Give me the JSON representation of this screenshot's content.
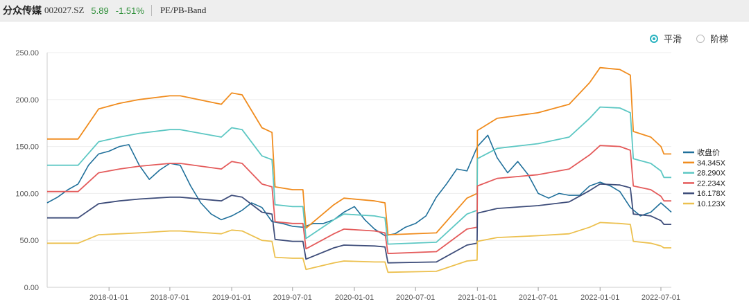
{
  "header": {
    "stock_name": "分众传媒",
    "stock_code": "002027.SZ",
    "price": "5.89",
    "change": "-1.51%",
    "mode": "PE/PB-Band"
  },
  "toggle": {
    "smooth_label": "平滑",
    "step_label": "阶梯",
    "selected": "smooth"
  },
  "chart_data": {
    "type": "line",
    "title": "",
    "xlabel": "",
    "ylabel": "",
    "ylim": [
      0,
      250
    ],
    "yticks": [
      "0.00",
      "50.00",
      "100.00",
      "150.00",
      "200.00",
      "250.00"
    ],
    "xticks": [
      "2018-01-01",
      "2018-07-01",
      "2019-01-01",
      "2019-07-01",
      "2020-01-01",
      "2020-07-01",
      "2021-01-01",
      "2021-07-01",
      "2022-01-01",
      "2022-07-01"
    ],
    "xlim": [
      "2017-07-01",
      "2022-08-01"
    ],
    "grid": "horizontal",
    "legend_position": "right",
    "series": [
      {
        "name": "收盘价",
        "color": "#1f6f9a",
        "points": [
          [
            "2017-07-01",
            90
          ],
          [
            "2017-08-01",
            96
          ],
          [
            "2017-09-01",
            104
          ],
          [
            "2017-10-01",
            110
          ],
          [
            "2017-11-01",
            130
          ],
          [
            "2017-12-01",
            142
          ],
          [
            "2018-01-01",
            145
          ],
          [
            "2018-02-01",
            150
          ],
          [
            "2018-03-01",
            152
          ],
          [
            "2018-04-01",
            130
          ],
          [
            "2018-05-01",
            115
          ],
          [
            "2018-06-01",
            125
          ],
          [
            "2018-07-01",
            132
          ],
          [
            "2018-08-01",
            130
          ],
          [
            "2018-09-01",
            108
          ],
          [
            "2018-10-01",
            90
          ],
          [
            "2018-11-01",
            78
          ],
          [
            "2018-12-01",
            72
          ],
          [
            "2019-01-01",
            76
          ],
          [
            "2019-02-01",
            82
          ],
          [
            "2019-03-01",
            90
          ],
          [
            "2019-04-01",
            85
          ],
          [
            "2019-05-01",
            70
          ],
          [
            "2019-06-01",
            68
          ],
          [
            "2019-07-01",
            65
          ],
          [
            "2019-08-01",
            64
          ],
          [
            "2019-09-01",
            68
          ],
          [
            "2019-10-01",
            68
          ],
          [
            "2019-11-01",
            72
          ],
          [
            "2019-12-01",
            80
          ],
          [
            "2020-01-01",
            86
          ],
          [
            "2020-02-01",
            72
          ],
          [
            "2020-03-01",
            62
          ],
          [
            "2020-04-01",
            55
          ],
          [
            "2020-05-01",
            57
          ],
          [
            "2020-06-01",
            64
          ],
          [
            "2020-07-01",
            68
          ],
          [
            "2020-08-01",
            76
          ],
          [
            "2020-09-01",
            96
          ],
          [
            "2020-10-01",
            110
          ],
          [
            "2020-11-01",
            126
          ],
          [
            "2020-12-01",
            124
          ],
          [
            "2021-01-01",
            150
          ],
          [
            "2021-02-01",
            162
          ],
          [
            "2021-03-01",
            138
          ],
          [
            "2021-04-01",
            122
          ],
          [
            "2021-05-01",
            134
          ],
          [
            "2021-06-01",
            120
          ],
          [
            "2021-07-01",
            100
          ],
          [
            "2021-08-01",
            95
          ],
          [
            "2021-09-01",
            100
          ],
          [
            "2021-10-01",
            98
          ],
          [
            "2021-11-01",
            98
          ],
          [
            "2021-12-01",
            108
          ],
          [
            "2022-01-01",
            112
          ],
          [
            "2022-02-01",
            108
          ],
          [
            "2022-03-01",
            102
          ],
          [
            "2022-04-01",
            85
          ],
          [
            "2022-05-01",
            76
          ],
          [
            "2022-06-01",
            80
          ],
          [
            "2022-07-01",
            90
          ],
          [
            "2022-07-20",
            84
          ],
          [
            "2022-08-01",
            80
          ]
        ]
      },
      {
        "name": "34.345X",
        "color": "#f08c1e",
        "points": [
          [
            "2017-07-01",
            158
          ],
          [
            "2017-10-01",
            158
          ],
          [
            "2017-12-01",
            190
          ],
          [
            "2018-02-01",
            196
          ],
          [
            "2018-04-01",
            200
          ],
          [
            "2018-07-01",
            204
          ],
          [
            "2018-08-01",
            204
          ],
          [
            "2018-12-01",
            195
          ],
          [
            "2019-01-01",
            207
          ],
          [
            "2019-02-01",
            205
          ],
          [
            "2019-04-01",
            170
          ],
          [
            "2019-05-01",
            165
          ],
          [
            "2019-05-10",
            107
          ],
          [
            "2019-07-01",
            104
          ],
          [
            "2019-08-01",
            104
          ],
          [
            "2019-08-10",
            63
          ],
          [
            "2019-11-01",
            88
          ],
          [
            "2019-12-01",
            95
          ],
          [
            "2020-03-01",
            92
          ],
          [
            "2020-04-01",
            90
          ],
          [
            "2020-04-10",
            56
          ],
          [
            "2020-09-01",
            58
          ],
          [
            "2020-12-01",
            95
          ],
          [
            "2020-12-31",
            100
          ],
          [
            "2021-01-01",
            167
          ],
          [
            "2021-03-01",
            180
          ],
          [
            "2021-07-01",
            186
          ],
          [
            "2021-10-01",
            195
          ],
          [
            "2021-12-01",
            218
          ],
          [
            "2022-01-01",
            234
          ],
          [
            "2022-03-01",
            232
          ],
          [
            "2022-04-01",
            226
          ],
          [
            "2022-04-10",
            166
          ],
          [
            "2022-06-01",
            160
          ],
          [
            "2022-07-01",
            150
          ],
          [
            "2022-07-10",
            142
          ],
          [
            "2022-08-01",
            142
          ]
        ]
      },
      {
        "name": "28.290X",
        "color": "#5cc7c3",
        "points": [
          [
            "2017-07-01",
            130
          ],
          [
            "2017-10-01",
            130
          ],
          [
            "2017-12-01",
            155
          ],
          [
            "2018-02-01",
            160
          ],
          [
            "2018-04-01",
            164
          ],
          [
            "2018-07-01",
            168
          ],
          [
            "2018-08-01",
            168
          ],
          [
            "2018-12-01",
            160
          ],
          [
            "2019-01-01",
            170
          ],
          [
            "2019-02-01",
            168
          ],
          [
            "2019-04-01",
            140
          ],
          [
            "2019-05-01",
            136
          ],
          [
            "2019-05-10",
            88
          ],
          [
            "2019-07-01",
            86
          ],
          [
            "2019-08-01",
            86
          ],
          [
            "2019-08-10",
            52
          ],
          [
            "2019-11-01",
            72
          ],
          [
            "2019-12-01",
            78
          ],
          [
            "2020-03-01",
            76
          ],
          [
            "2020-04-01",
            74
          ],
          [
            "2020-04-10",
            46
          ],
          [
            "2020-09-01",
            48
          ],
          [
            "2020-12-01",
            78
          ],
          [
            "2020-12-31",
            82
          ],
          [
            "2021-01-01",
            137
          ],
          [
            "2021-03-01",
            148
          ],
          [
            "2021-07-01",
            153
          ],
          [
            "2021-10-01",
            160
          ],
          [
            "2021-12-01",
            180
          ],
          [
            "2022-01-01",
            192
          ],
          [
            "2022-03-01",
            191
          ],
          [
            "2022-04-01",
            186
          ],
          [
            "2022-04-10",
            137
          ],
          [
            "2022-06-01",
            132
          ],
          [
            "2022-07-01",
            124
          ],
          [
            "2022-07-10",
            117
          ],
          [
            "2022-08-01",
            117
          ]
        ]
      },
      {
        "name": "22.234X",
        "color": "#e45b5b",
        "points": [
          [
            "2017-07-01",
            102
          ],
          [
            "2017-10-01",
            102
          ],
          [
            "2017-12-01",
            122
          ],
          [
            "2018-02-01",
            126
          ],
          [
            "2018-04-01",
            129
          ],
          [
            "2018-07-01",
            132
          ],
          [
            "2018-08-01",
            132
          ],
          [
            "2018-12-01",
            126
          ],
          [
            "2019-01-01",
            134
          ],
          [
            "2019-02-01",
            132
          ],
          [
            "2019-04-01",
            110
          ],
          [
            "2019-05-01",
            107
          ],
          [
            "2019-05-10",
            70
          ],
          [
            "2019-07-01",
            68
          ],
          [
            "2019-08-01",
            68
          ],
          [
            "2019-08-10",
            41
          ],
          [
            "2019-11-01",
            57
          ],
          [
            "2019-12-01",
            62
          ],
          [
            "2020-03-01",
            60
          ],
          [
            "2020-04-01",
            58
          ],
          [
            "2020-04-10",
            36
          ],
          [
            "2020-09-01",
            38
          ],
          [
            "2020-12-01",
            62
          ],
          [
            "2020-12-31",
            64
          ],
          [
            "2021-01-01",
            108
          ],
          [
            "2021-03-01",
            116
          ],
          [
            "2021-07-01",
            120
          ],
          [
            "2021-10-01",
            126
          ],
          [
            "2021-12-01",
            141
          ],
          [
            "2022-01-01",
            151
          ],
          [
            "2022-03-01",
            150
          ],
          [
            "2022-04-01",
            146
          ],
          [
            "2022-04-10",
            108
          ],
          [
            "2022-06-01",
            104
          ],
          [
            "2022-07-01",
            97
          ],
          [
            "2022-07-10",
            92
          ],
          [
            "2022-08-01",
            92
          ]
        ]
      },
      {
        "name": "16.178X",
        "color": "#3e4d7a",
        "points": [
          [
            "2017-07-01",
            74
          ],
          [
            "2017-10-01",
            74
          ],
          [
            "2017-12-01",
            89
          ],
          [
            "2018-02-01",
            92
          ],
          [
            "2018-04-01",
            94
          ],
          [
            "2018-07-01",
            96
          ],
          [
            "2018-08-01",
            96
          ],
          [
            "2018-12-01",
            92
          ],
          [
            "2019-01-01",
            98
          ],
          [
            "2019-02-01",
            96
          ],
          [
            "2019-04-01",
            80
          ],
          [
            "2019-05-01",
            78
          ],
          [
            "2019-05-10",
            51
          ],
          [
            "2019-07-01",
            49
          ],
          [
            "2019-08-01",
            49
          ],
          [
            "2019-08-10",
            30
          ],
          [
            "2019-11-01",
            42
          ],
          [
            "2019-12-01",
            45
          ],
          [
            "2020-03-01",
            44
          ],
          [
            "2020-04-01",
            43
          ],
          [
            "2020-04-10",
            26
          ],
          [
            "2020-09-01",
            27
          ],
          [
            "2020-12-01",
            45
          ],
          [
            "2020-12-31",
            47
          ],
          [
            "2021-01-01",
            79
          ],
          [
            "2021-03-01",
            84
          ],
          [
            "2021-07-01",
            87
          ],
          [
            "2021-10-01",
            91
          ],
          [
            "2021-12-01",
            103
          ],
          [
            "2022-01-01",
            110
          ],
          [
            "2022-03-01",
            109
          ],
          [
            "2022-04-01",
            106
          ],
          [
            "2022-04-10",
            78
          ],
          [
            "2022-06-01",
            76
          ],
          [
            "2022-07-01",
            71
          ],
          [
            "2022-07-10",
            67
          ],
          [
            "2022-08-01",
            67
          ]
        ]
      },
      {
        "name": "10.123X",
        "color": "#ecc04e",
        "points": [
          [
            "2017-07-01",
            47
          ],
          [
            "2017-10-01",
            47
          ],
          [
            "2017-12-01",
            56
          ],
          [
            "2018-02-01",
            57
          ],
          [
            "2018-04-01",
            58
          ],
          [
            "2018-07-01",
            60
          ],
          [
            "2018-08-01",
            60
          ],
          [
            "2018-12-01",
            57
          ],
          [
            "2019-01-01",
            61
          ],
          [
            "2019-02-01",
            60
          ],
          [
            "2019-04-01",
            50
          ],
          [
            "2019-05-01",
            49
          ],
          [
            "2019-05-10",
            32
          ],
          [
            "2019-07-01",
            31
          ],
          [
            "2019-08-01",
            31
          ],
          [
            "2019-08-10",
            19
          ],
          [
            "2019-11-01",
            26
          ],
          [
            "2019-12-01",
            28
          ],
          [
            "2020-03-01",
            27
          ],
          [
            "2020-04-01",
            27
          ],
          [
            "2020-04-10",
            16
          ],
          [
            "2020-09-01",
            17
          ],
          [
            "2020-12-01",
            28
          ],
          [
            "2020-12-31",
            29
          ],
          [
            "2021-01-01",
            49
          ],
          [
            "2021-03-01",
            53
          ],
          [
            "2021-07-01",
            55
          ],
          [
            "2021-10-01",
            57
          ],
          [
            "2021-12-01",
            64
          ],
          [
            "2022-01-01",
            69
          ],
          [
            "2022-03-01",
            68
          ],
          [
            "2022-04-01",
            67
          ],
          [
            "2022-04-10",
            49
          ],
          [
            "2022-06-01",
            47
          ],
          [
            "2022-07-01",
            44
          ],
          [
            "2022-07-10",
            42
          ],
          [
            "2022-08-01",
            42
          ]
        ]
      }
    ]
  }
}
